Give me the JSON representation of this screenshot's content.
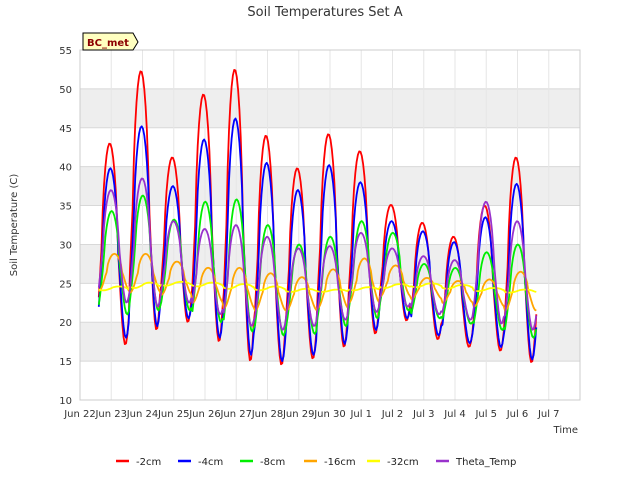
{
  "chart_data": {
    "type": "line",
    "title": "Soil Temperatures Set A",
    "xlabel": "Time",
    "ylabel": "Soil Temperature (C)",
    "badge": "BC_met",
    "ylim": [
      10,
      55
    ],
    "yticks": [
      10,
      15,
      20,
      25,
      30,
      35,
      40,
      45,
      50,
      55
    ],
    "xlim": [
      0,
      16
    ],
    "xticks": [
      {
        "x": 0,
        "label": "Jun 22"
      },
      {
        "x": 1,
        "label": "Jun 23"
      },
      {
        "x": 2,
        "label": "Jun 24"
      },
      {
        "x": 3,
        "label": "Jun 25"
      },
      {
        "x": 4,
        "label": "Jun 26"
      },
      {
        "x": 5,
        "label": "Jun 27"
      },
      {
        "x": 6,
        "label": "Jun 28"
      },
      {
        "x": 7,
        "label": "Jun 29"
      },
      {
        "x": 8,
        "label": "Jun 30"
      },
      {
        "x": 9,
        "label": "Jul 1"
      },
      {
        "x": 10,
        "label": "Jul 2"
      },
      {
        "x": 11,
        "label": "Jul 3"
      },
      {
        "x": 12,
        "label": "Jul 4"
      },
      {
        "x": 13,
        "label": "Jul 5"
      },
      {
        "x": 14,
        "label": "Jul 6"
      },
      {
        "x": 15,
        "label": "Jul 7"
      }
    ],
    "grid": true,
    "legend_position": "bottom",
    "series": [
      {
        "name": "-2cm",
        "color": "#ff0000",
        "phase": 0.0,
        "daily_max": [
          43,
          52.3,
          41.2,
          49.3,
          52.5,
          44,
          39.8,
          44.2,
          42,
          35.1,
          32.8,
          31,
          35,
          41.2
        ],
        "daily_min": [
          17.1,
          19,
          20,
          17.5,
          15,
          14.5,
          15.3,
          16.8,
          18.5,
          20.2,
          17.8,
          16.8,
          16.3,
          14.8
        ]
      },
      {
        "name": "-4cm",
        "color": "#0000ff",
        "phase": 0.02,
        "daily_max": [
          39.8,
          45.2,
          37.5,
          43.5,
          46.2,
          40.5,
          37,
          40.2,
          38,
          33,
          31.7,
          30.3,
          33.5,
          37.8
        ],
        "daily_min": [
          18,
          19.5,
          20.5,
          18,
          15.8,
          15,
          15.8,
          17.2,
          19,
          20.5,
          18.3,
          17.3,
          16.8,
          15.2
        ]
      },
      {
        "name": "-8cm",
        "color": "#00ee00",
        "phase": 0.06,
        "daily_max": [
          34.3,
          36.3,
          33.2,
          35.5,
          35.8,
          32.5,
          30,
          31,
          33,
          31.5,
          27.5,
          27,
          29,
          30
        ],
        "daily_min": [
          21,
          21.5,
          21.5,
          20,
          18.8,
          18.3,
          18.5,
          19.5,
          20.5,
          21.5,
          20.5,
          19.8,
          19,
          18
        ]
      },
      {
        "name": "-16cm",
        "color": "#ffa500",
        "phase": 0.15,
        "daily_max": [
          28.8,
          28.8,
          27.8,
          27,
          27,
          26.3,
          25.8,
          26.8,
          28.2,
          27.3,
          25.7,
          25.3,
          25.5,
          26.5
        ],
        "daily_min": [
          24,
          23.8,
          23.5,
          22.5,
          21.8,
          21.5,
          21.5,
          21.8,
          22.5,
          23.3,
          23,
          22.5,
          22,
          21.5
        ]
      },
      {
        "name": "-32cm",
        "color": "#ffff00",
        "phase": 0.3,
        "daily_max": [
          24.6,
          25.1,
          25.2,
          25.1,
          24.9,
          24.6,
          24.3,
          24.2,
          24.5,
          24.9,
          25,
          24.8,
          24.4,
          24.2
        ],
        "daily_min": [
          24.1,
          24.4,
          24.7,
          24.6,
          24.3,
          24.1,
          23.9,
          23.9,
          24.1,
          24.4,
          24.5,
          24.3,
          24,
          23.8
        ]
      },
      {
        "name": "Theta_Temp",
        "color": "#9932cc",
        "phase": 0.04,
        "daily_max": [
          37,
          38.5,
          33,
          32,
          32.5,
          31,
          29.5,
          29.8,
          31.5,
          29.5,
          28.5,
          28,
          35.5,
          33
        ],
        "daily_min": [
          22.5,
          22,
          22.5,
          21,
          19.5,
          19,
          19.5,
          20.3,
          21.3,
          22,
          21,
          20.3,
          19.8,
          19
        ]
      }
    ]
  }
}
